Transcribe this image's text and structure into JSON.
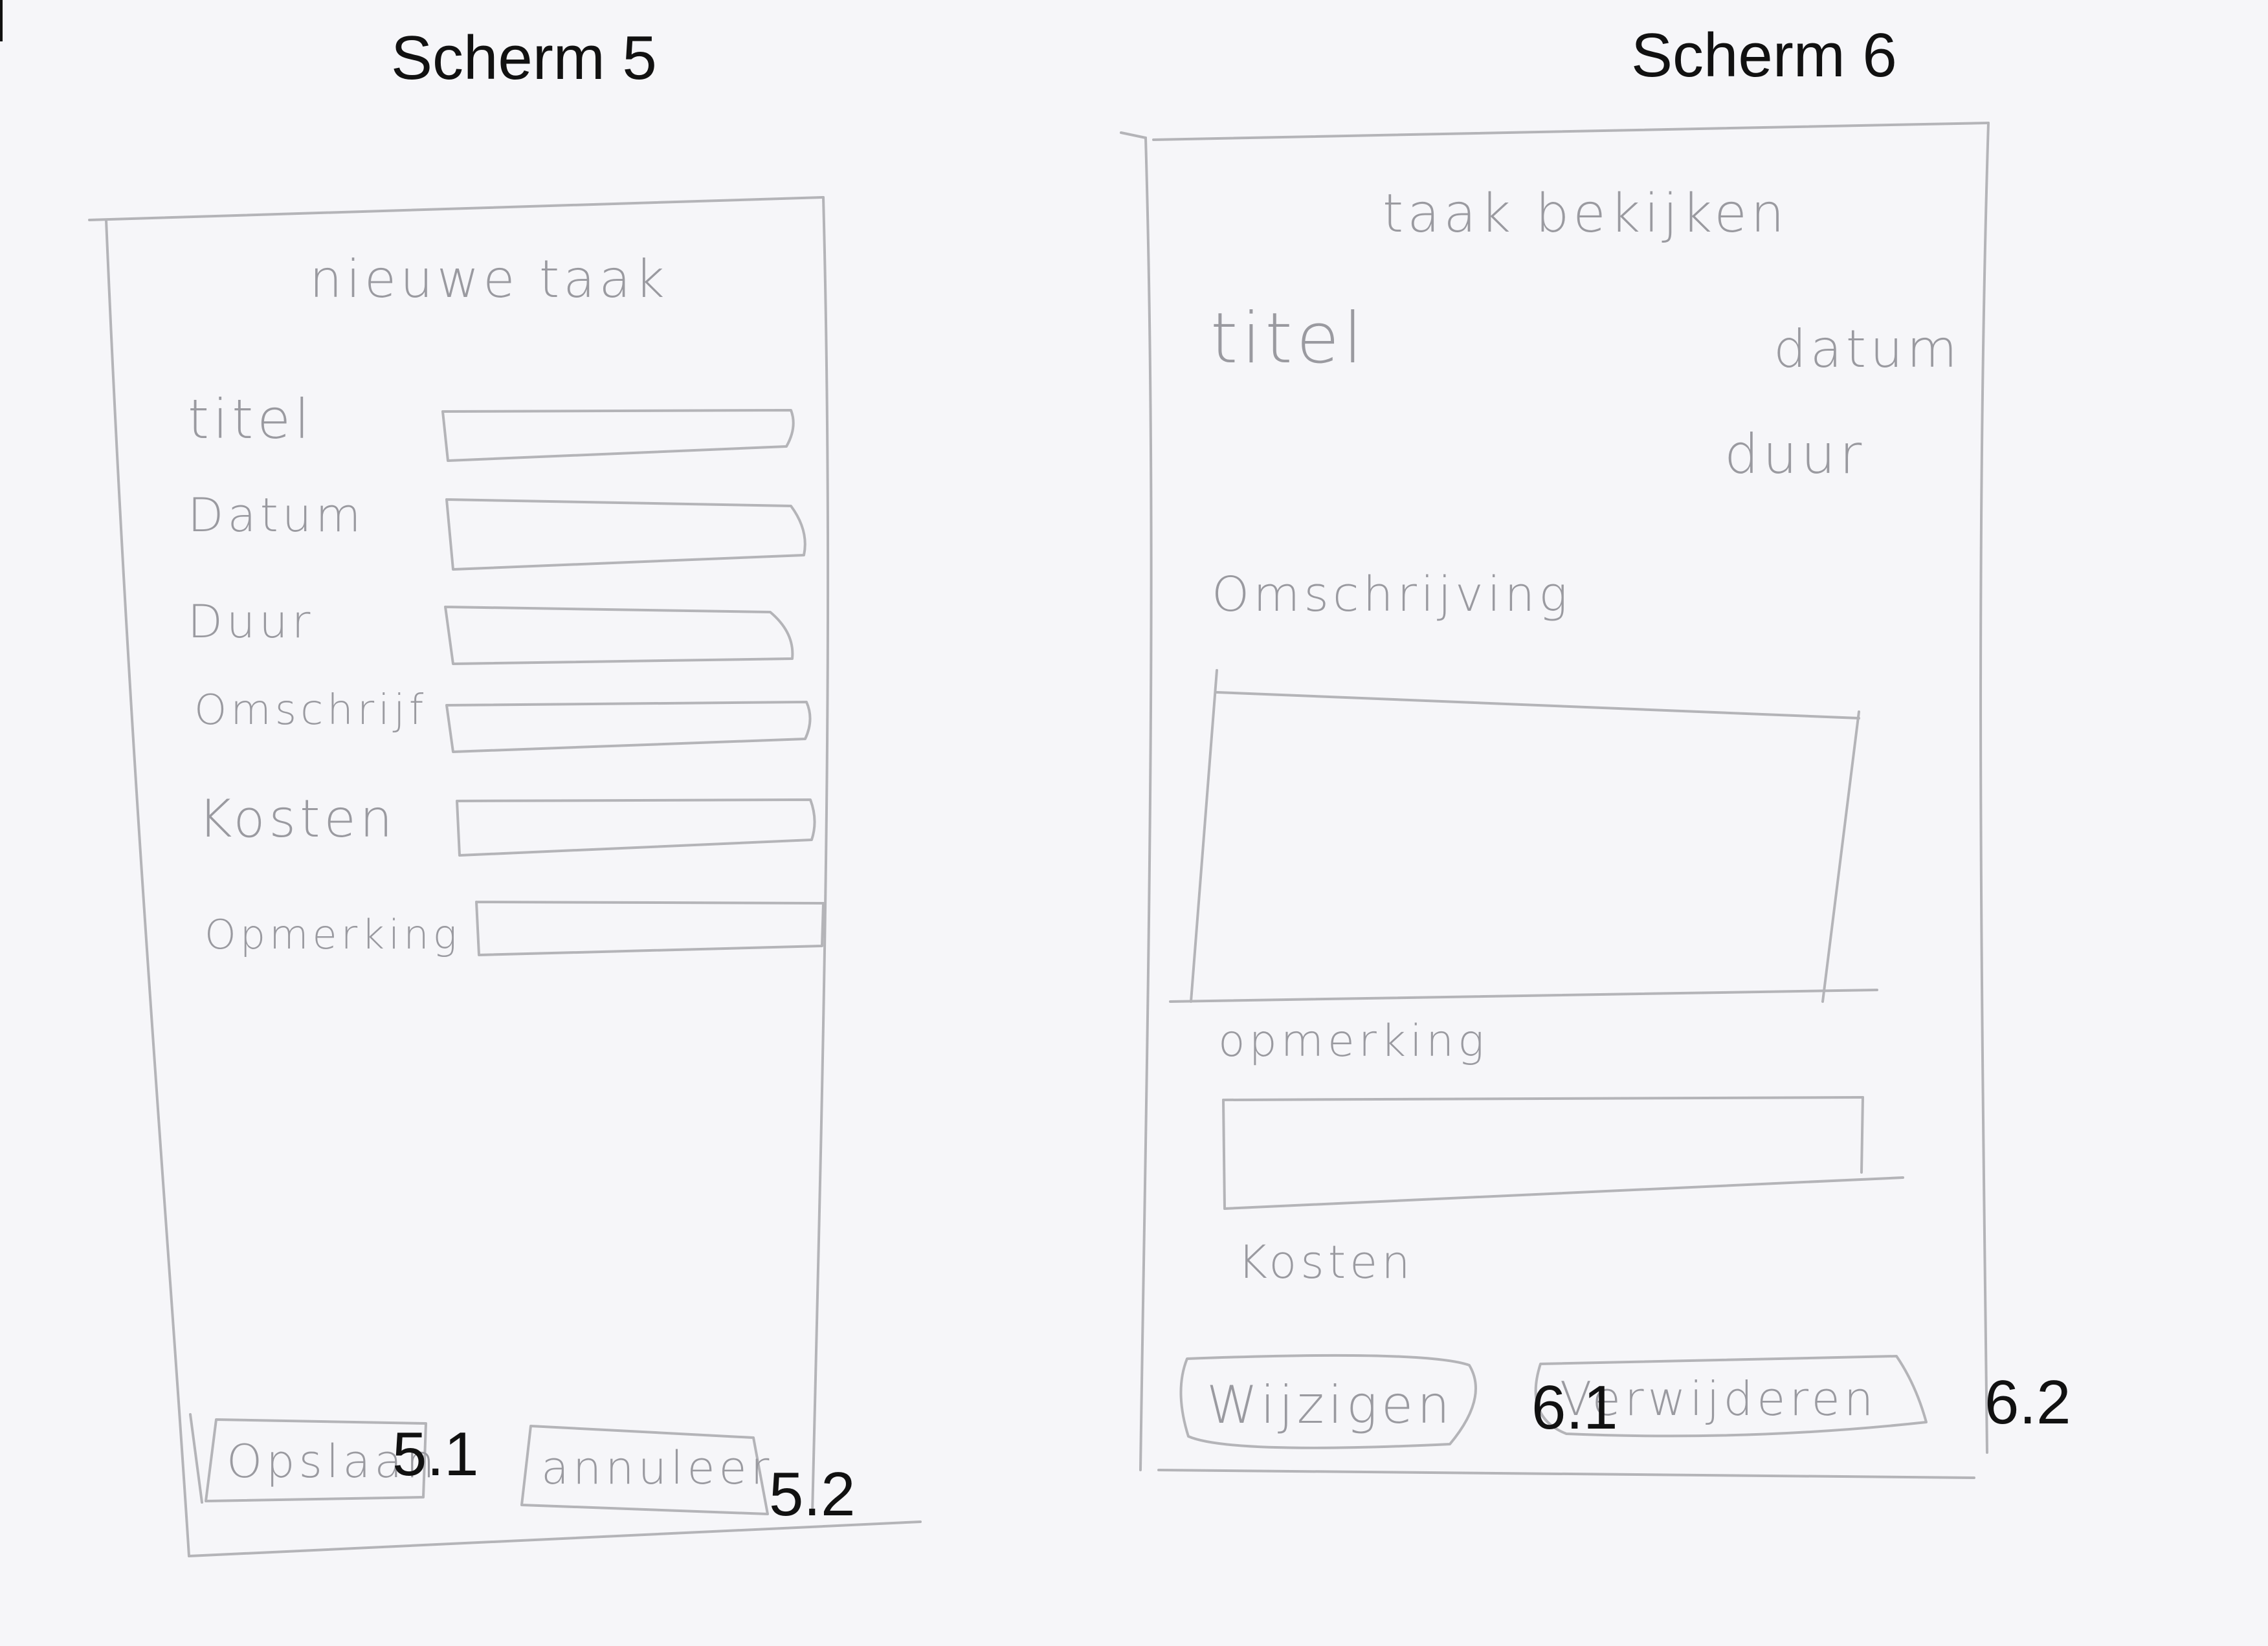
{
  "screen5": {
    "heading": "Scherm 5",
    "title": "nieuwe taak",
    "labels": {
      "titel": "titel",
      "datum": "Datum",
      "duur": "Duur",
      "omschrijf": "Omschrijf",
      "kosten": "Kosten",
      "opmerking": "Opmerking"
    },
    "buttons": {
      "save": "Opslaan",
      "cancel": "annuleer"
    },
    "markers": {
      "save": "5.1",
      "cancel": "5.2"
    }
  },
  "screen6": {
    "heading": "Scherm 6",
    "title": "taak bekijken",
    "labels": {
      "titel": "titel",
      "datum": "datum",
      "duur": "duur",
      "omschrijving": "Omschrijving",
      "opmerking": "opmerking",
      "kosten": "Kosten"
    },
    "buttons": {
      "edit": "Wijzigen",
      "delete": "Verwijderen"
    },
    "markers": {
      "edit": "6.1",
      "delete": "6.2"
    }
  }
}
